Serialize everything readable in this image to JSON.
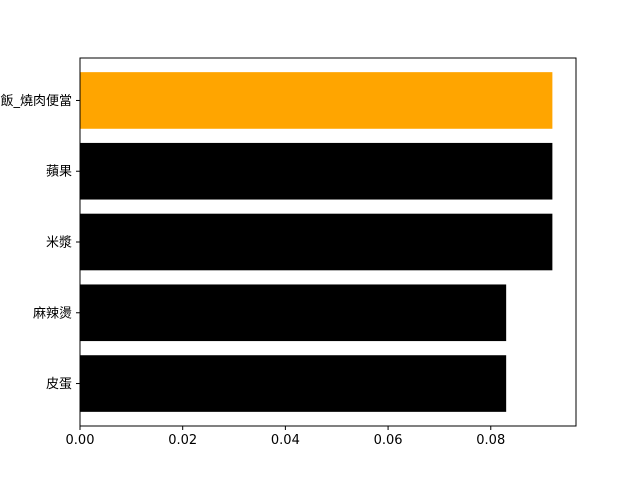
{
  "chart_data": {
    "type": "bar",
    "orientation": "horizontal",
    "categories": [
      "皮蛋",
      "麻辣燙",
      "米漿",
      "蘋果",
      "飯_燒肉便當"
    ],
    "values": [
      0.083,
      0.083,
      0.092,
      0.092,
      0.092
    ],
    "bar_colors": [
      "#000000",
      "#000000",
      "#000000",
      "#000000",
      "#ffa500"
    ],
    "xlim": [
      0,
      0.0966
    ],
    "xticks": [
      0.0,
      0.02,
      0.04,
      0.06,
      0.08
    ],
    "xtick_labels": [
      "0.00",
      "0.02",
      "0.04",
      "0.06",
      "0.08"
    ],
    "title": "",
    "xlabel": "",
    "ylabel": "",
    "grid": false,
    "legend": null
  }
}
